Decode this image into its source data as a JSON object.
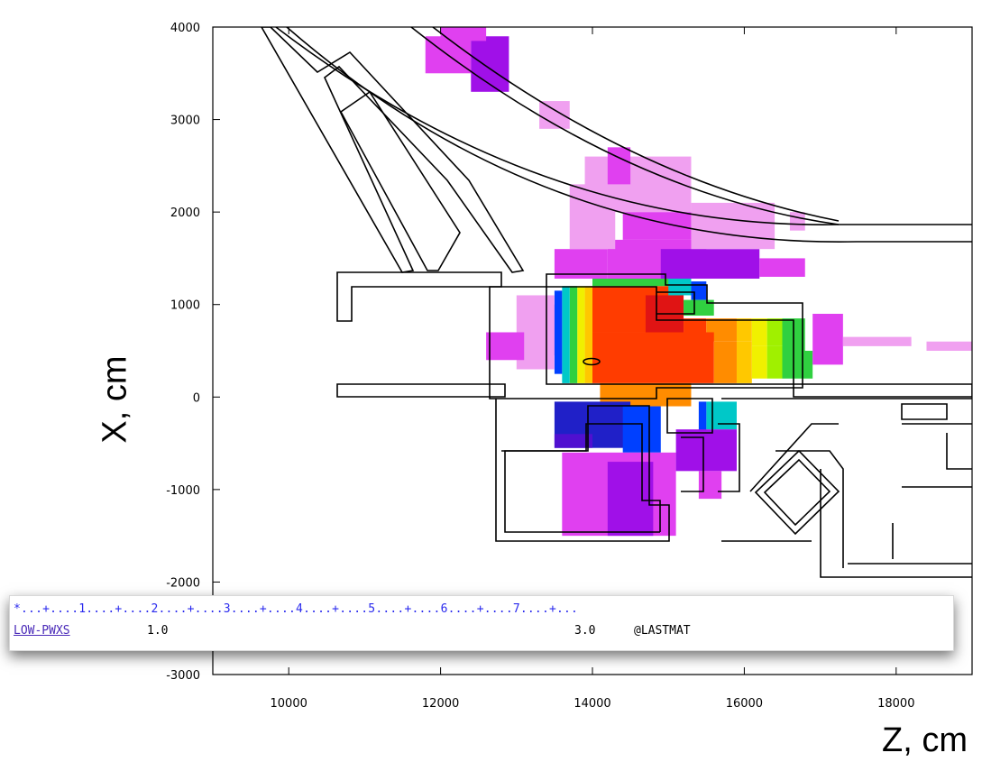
{
  "chart_data": {
    "type": "heatmap",
    "xlabel": "Z, cm",
    "ylabel": "X, cm",
    "xlim": [
      9000,
      19000
    ],
    "ylim": [
      -3000,
      4000
    ],
    "x_ticks": [
      "10000",
      "12000",
      "14000",
      "16000",
      "18000"
    ],
    "y_ticks": [
      "4000",
      "3000",
      "2000",
      "1000",
      "0",
      "-1000",
      "-2000",
      "-3000"
    ],
    "colors": {
      "red": "#ff3c00",
      "dark-red": "#e01414",
      "orange": "#ff8c00",
      "yellow-orange": "#ffc800",
      "yellow": "#f0f000",
      "yellow-green": "#a0f000",
      "green": "#30d040",
      "cyan": "#00c8c8",
      "blue": "#0040ff",
      "dark-blue": "#2020c8",
      "indigo": "#5010d0",
      "violet": "#a010e8",
      "magenta": "#e040f0",
      "pink": "#f0a0f0"
    },
    "cells": [
      [
        14000,
        15200,
        700,
        1200,
        "red"
      ],
      [
        14700,
        15200,
        700,
        1100,
        "dark-red"
      ],
      [
        15200,
        15500,
        600,
        850,
        "red"
      ],
      [
        15500,
        15900,
        600,
        850,
        "orange"
      ],
      [
        15900,
        16100,
        600,
        850,
        "yellow-orange"
      ],
      [
        16100,
        16300,
        550,
        850,
        "yellow"
      ],
      [
        16300,
        16500,
        550,
        850,
        "yellow-green"
      ],
      [
        16500,
        16800,
        500,
        850,
        "green"
      ],
      [
        14000,
        15600,
        150,
        700,
        "red"
      ],
      [
        15600,
        15900,
        150,
        600,
        "orange"
      ],
      [
        15900,
        16100,
        150,
        600,
        "yellow-orange"
      ],
      [
        16100,
        16300,
        200,
        550,
        "yellow"
      ],
      [
        16300,
        16500,
        200,
        550,
        "yellow-green"
      ],
      [
        16500,
        16900,
        200,
        500,
        "green"
      ],
      [
        14100,
        15300,
        -100,
        150,
        "orange"
      ],
      [
        13900,
        14000,
        150,
        1200,
        "yellow-orange"
      ],
      [
        13800,
        13900,
        150,
        1200,
        "yellow"
      ],
      [
        13700,
        13800,
        150,
        1200,
        "green"
      ],
      [
        13600,
        13700,
        150,
        1200,
        "cyan"
      ],
      [
        13500,
        13600,
        250,
        1150,
        "blue"
      ],
      [
        13450,
        13500,
        450,
        1000,
        "indigo"
      ],
      [
        13400,
        13450,
        600,
        900,
        "violet"
      ],
      [
        14000,
        15200,
        1200,
        1280,
        "green"
      ],
      [
        15000,
        15300,
        1100,
        1280,
        "cyan"
      ],
      [
        15300,
        15500,
        1050,
        1250,
        "blue"
      ],
      [
        15200,
        15600,
        880,
        1050,
        "green"
      ],
      [
        13500,
        14500,
        -550,
        -50,
        "dark-blue"
      ],
      [
        14400,
        14900,
        -600,
        -100,
        "blue"
      ],
      [
        13500,
        14000,
        -550,
        -400,
        "indigo"
      ],
      [
        15500,
        15900,
        -350,
        -50,
        "cyan"
      ],
      [
        15400,
        15500,
        -550,
        -50,
        "blue"
      ],
      [
        13600,
        15100,
        -1500,
        -600,
        "magenta"
      ],
      [
        14200,
        14800,
        -1500,
        -700,
        "violet"
      ],
      [
        15100,
        15900,
        -800,
        -350,
        "violet"
      ],
      [
        15400,
        15700,
        -1100,
        -800,
        "magenta"
      ],
      [
        13500,
        14200,
        1280,
        1600,
        "magenta"
      ],
      [
        14200,
        15500,
        1280,
        1700,
        "magenta"
      ],
      [
        14400,
        15300,
        1700,
        2000,
        "magenta"
      ],
      [
        14900,
        16200,
        1280,
        1600,
        "violet"
      ],
      [
        15300,
        16400,
        1600,
        2100,
        "pink"
      ],
      [
        13700,
        14300,
        1600,
        2300,
        "pink"
      ],
      [
        13900,
        15300,
        2000,
        2600,
        "pink"
      ],
      [
        14200,
        14500,
        2300,
        2700,
        "magenta"
      ],
      [
        16200,
        16800,
        1300,
        1500,
        "magenta"
      ],
      [
        13000,
        13500,
        300,
        1100,
        "pink"
      ],
      [
        12600,
        13100,
        400,
        700,
        "magenta"
      ],
      [
        16900,
        17300,
        350,
        900,
        "magenta"
      ],
      [
        17300,
        18200,
        550,
        650,
        "pink"
      ],
      [
        18400,
        19000,
        500,
        600,
        "pink"
      ],
      [
        11800,
        12400,
        3500,
        3900,
        "magenta"
      ],
      [
        12400,
        12900,
        3300,
        3900,
        "violet"
      ],
      [
        12000,
        12600,
        3850,
        4000,
        "magenta"
      ],
      [
        13300,
        13700,
        2900,
        3200,
        "pink"
      ],
      [
        16600,
        16800,
        1800,
        2000,
        "pink"
      ]
    ]
  },
  "card": {
    "ruler": "*...+....1....+....2....+....3....+....4....+....5....+....6....+....7....+...",
    "name": "LOW-PWXS",
    "what1": "1.0",
    "what6": "3.0",
    "sdum": "@LASTMAT"
  }
}
